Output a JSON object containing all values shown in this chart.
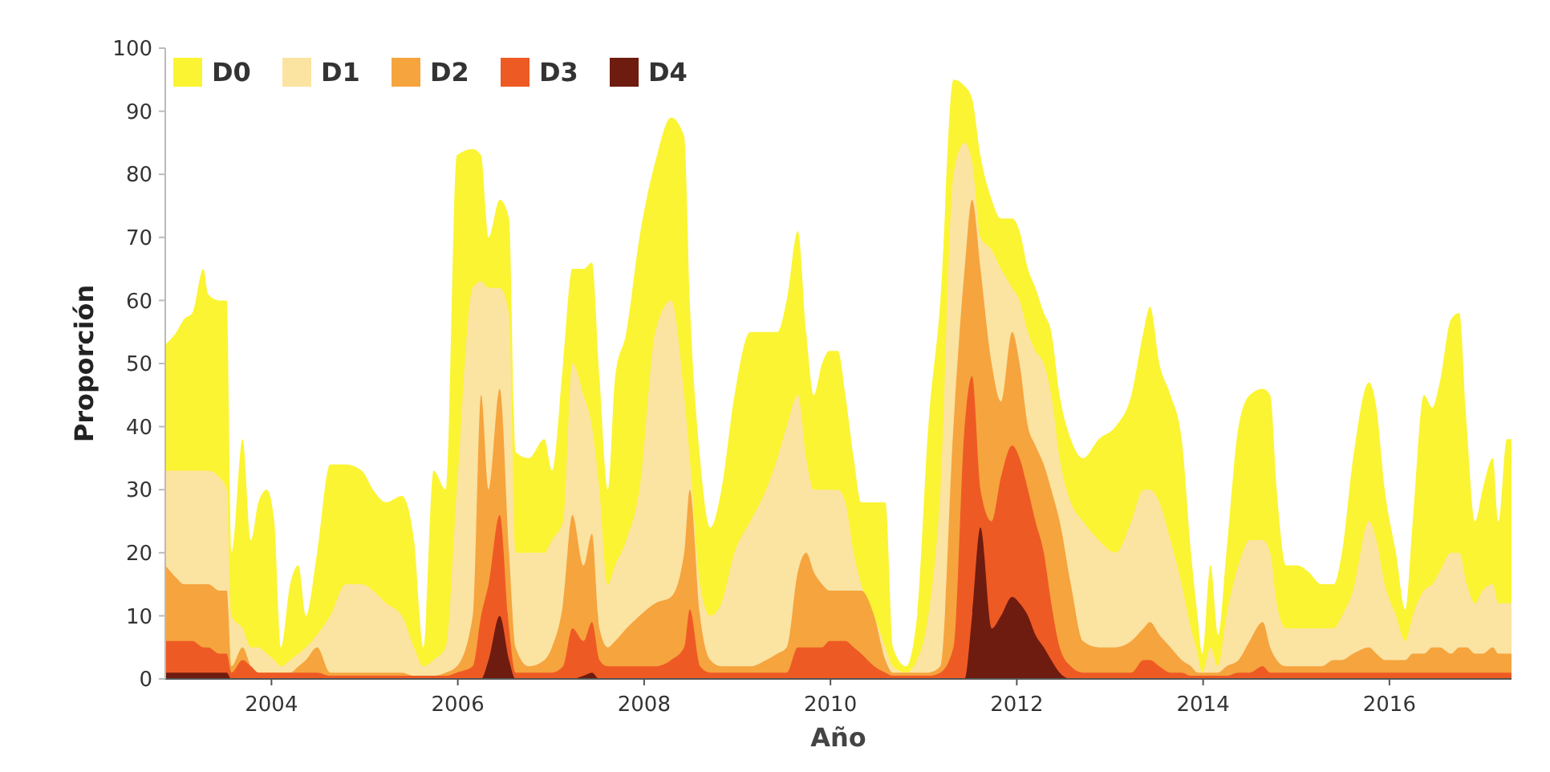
{
  "chart_data": {
    "type": "area",
    "xlabel": "Año",
    "ylabel": "Proporción",
    "legend": "top left",
    "xlim": [
      2002.86,
      2017.31
    ],
    "xticks": [
      2004,
      2006,
      2008,
      2010,
      2012,
      2014,
      2016
    ],
    "ylim": [
      0,
      100
    ],
    "yticks": [
      0,
      10,
      20,
      30,
      40,
      50,
      60,
      70,
      80,
      90,
      100
    ],
    "x": [
      2002.86,
      2002.98,
      2003.06,
      2003.15,
      2003.27,
      2003.32,
      2003.44,
      2003.52,
      2003.57,
      2003.69,
      2003.78,
      2003.86,
      2003.95,
      2004.03,
      2004.1,
      2004.2,
      2004.29,
      2004.37,
      2004.49,
      2004.63,
      2004.8,
      2004.97,
      2005.09,
      2005.23,
      2005.4,
      2005.53,
      2005.63,
      2005.74,
      2005.87,
      2005.99,
      2006.16,
      2006.25,
      2006.33,
      2006.45,
      2006.55,
      2006.62,
      2006.76,
      2006.93,
      2007.01,
      2007.13,
      2007.23,
      2007.35,
      2007.44,
      2007.52,
      2007.61,
      2007.69,
      2007.81,
      2007.95,
      2008.12,
      2008.29,
      2008.43,
      2008.49,
      2008.6,
      2008.71,
      2008.83,
      2008.97,
      2009.14,
      2009.31,
      2009.43,
      2009.53,
      2009.65,
      2009.74,
      2009.82,
      2009.91,
      2009.99,
      2010.08,
      2010.16,
      2010.25,
      2010.33,
      2010.47,
      2010.59,
      2010.67,
      2010.81,
      2010.93,
      2011.05,
      2011.18,
      2011.32,
      2011.44,
      2011.52,
      2011.61,
      2011.73,
      2011.83,
      2011.95,
      2012.03,
      2012.12,
      2012.2,
      2012.29,
      2012.37,
      2012.46,
      2012.58,
      2012.71,
      2012.88,
      2013.06,
      2013.23,
      2013.36,
      2013.43,
      2013.53,
      2013.65,
      2013.77,
      2013.87,
      2013.94,
      2013.99,
      2014.08,
      2014.16,
      2014.25,
      2014.38,
      2014.5,
      2014.64,
      2014.72,
      2014.79,
      2014.89,
      2015.01,
      2015.13,
      2015.27,
      2015.4,
      2015.49,
      2015.61,
      2015.78,
      2015.86,
      2015.95,
      2016.07,
      2016.17,
      2016.25,
      2016.37,
      2016.46,
      2016.54,
      2016.66,
      2016.75,
      2016.83,
      2016.92,
      2017.0,
      2017.11,
      2017.17,
      2017.26,
      2017.31
    ],
    "series": [
      {
        "name": "D0",
        "color": "#fbf432",
        "values": [
          53,
          55,
          57,
          58,
          65,
          61,
          60,
          60,
          20,
          38,
          22,
          28,
          30,
          25,
          5,
          15,
          18,
          10,
          20,
          34,
          34,
          33,
          30,
          28,
          29,
          22,
          5,
          33,
          30,
          83,
          84,
          83,
          70,
          76,
          73,
          36,
          35,
          38,
          33,
          50,
          65,
          65,
          66,
          48,
          30,
          48,
          55,
          70,
          82,
          89,
          86,
          60,
          35,
          24,
          30,
          45,
          55,
          55,
          55,
          60,
          71,
          55,
          45,
          50,
          52,
          52,
          45,
          35,
          28,
          28,
          28,
          5,
          2,
          10,
          40,
          60,
          95,
          94,
          92,
          83,
          76,
          73,
          73,
          71,
          65,
          62,
          58,
          55,
          45,
          38,
          35,
          38,
          40,
          45,
          55,
          59,
          50,
          45,
          38,
          20,
          10,
          4,
          18,
          7,
          20,
          40,
          45,
          46,
          45,
          30,
          18,
          18,
          17,
          15,
          15,
          20,
          35,
          47,
          43,
          30,
          20,
          11,
          25,
          45,
          43,
          47,
          57,
          58,
          40,
          25,
          30,
          35,
          25,
          38,
          38
        ]
      },
      {
        "name": "D1",
        "color": "#fbe3a2",
        "values": [
          33,
          33,
          33,
          33,
          33,
          33,
          32,
          30,
          10,
          8,
          5,
          5,
          4,
          3,
          2,
          3,
          4,
          5,
          7,
          10,
          15,
          15,
          14,
          12,
          10,
          5,
          2,
          3,
          5,
          30,
          62,
          63,
          62,
          62,
          58,
          20,
          20,
          20,
          22,
          25,
          50,
          45,
          40,
          30,
          15,
          18,
          22,
          30,
          55,
          60,
          45,
          35,
          15,
          10,
          12,
          20,
          25,
          30,
          35,
          40,
          45,
          35,
          30,
          30,
          30,
          30,
          28,
          20,
          15,
          10,
          5,
          2,
          1,
          3,
          10,
          30,
          80,
          85,
          82,
          70,
          68,
          65,
          62,
          60,
          55,
          52,
          50,
          45,
          35,
          28,
          25,
          22,
          20,
          25,
          30,
          30,
          28,
          22,
          15,
          8,
          4,
          1,
          5,
          2,
          10,
          18,
          22,
          22,
          20,
          12,
          8,
          8,
          8,
          8,
          8,
          10,
          14,
          25,
          22,
          15,
          10,
          6,
          10,
          14,
          15,
          17,
          20,
          20,
          15,
          12,
          14,
          15,
          12,
          12,
          12
        ]
      },
      {
        "name": "D2",
        "color": "#f6a43e",
        "values": [
          18,
          16,
          15,
          15,
          15,
          15,
          14,
          14,
          2,
          5,
          2,
          1,
          1,
          1,
          1,
          1,
          2,
          3,
          5,
          1,
          1,
          1,
          1,
          1,
          1,
          0.5,
          0.5,
          0.5,
          1,
          2,
          10,
          45,
          30,
          46,
          20,
          5,
          2,
          3,
          5,
          12,
          26,
          18,
          23,
          8,
          5,
          6,
          8,
          10,
          12,
          13,
          20,
          30,
          10,
          3,
          2,
          2,
          2,
          3,
          4,
          5,
          17,
          20,
          17,
          15,
          14,
          14,
          14,
          14,
          14,
          10,
          3,
          1,
          1,
          1,
          1,
          2,
          40,
          65,
          76,
          65,
          50,
          44,
          55,
          50,
          40,
          37,
          34,
          30,
          25,
          15,
          6,
          5,
          5,
          6,
          8,
          9,
          7,
          5,
          3,
          2,
          1,
          1,
          1,
          1,
          2,
          3,
          6,
          9,
          5,
          3,
          2,
          2,
          2,
          2,
          3,
          3,
          4,
          5,
          4,
          3,
          3,
          3,
          4,
          4,
          5,
          5,
          4,
          5,
          5,
          4,
          4,
          5,
          4,
          4,
          4
        ]
      },
      {
        "name": "D3",
        "color": "#ee5a24",
        "values": [
          6,
          6,
          6,
          6,
          5,
          5,
          4,
          4,
          1,
          3,
          2,
          1,
          1,
          1,
          1,
          1,
          1,
          1,
          1,
          0.5,
          0.5,
          0.5,
          0.5,
          0.5,
          0.5,
          0.5,
          0.5,
          0.5,
          0.5,
          1,
          2,
          10,
          15,
          26,
          8,
          1,
          1,
          1,
          1,
          2,
          8,
          6,
          9,
          3,
          2,
          2,
          2,
          2,
          2,
          3,
          5,
          11,
          2,
          1,
          1,
          1,
          1,
          1,
          1,
          1,
          5,
          5,
          5,
          5,
          6,
          6,
          6,
          5,
          4,
          2,
          1,
          0.5,
          0.5,
          0.5,
          0.5,
          1,
          5,
          40,
          48,
          30,
          25,
          32,
          37,
          35,
          30,
          25,
          20,
          12,
          5,
          2,
          1,
          1,
          1,
          1,
          3,
          3,
          2,
          1,
          1,
          0.5,
          0.5,
          0.5,
          0.5,
          0.5,
          0.5,
          1,
          1,
          2,
          1,
          1,
          1,
          1,
          1,
          1,
          1,
          1,
          1,
          1,
          1,
          1,
          1,
          1,
          1,
          1,
          1,
          1,
          1,
          1,
          1,
          1,
          1,
          1,
          1,
          1,
          1
        ]
      },
      {
        "name": "D4",
        "color": "#6e1c10",
        "values": [
          1,
          1,
          1,
          1,
          1,
          1,
          1,
          1,
          0,
          0,
          0,
          0,
          0,
          0,
          0,
          0,
          0,
          0,
          0,
          0,
          0,
          0,
          0,
          0,
          0,
          0,
          0,
          0,
          0,
          0,
          0,
          0,
          3,
          10,
          3,
          0,
          0,
          0,
          0,
          0,
          0,
          0.5,
          1,
          0,
          0,
          0,
          0,
          0,
          0,
          0,
          0,
          0,
          0,
          0,
          0,
          0,
          0,
          0,
          0,
          0,
          0,
          0,
          0,
          0,
          0,
          0,
          0,
          0,
          0,
          0,
          0,
          0,
          0,
          0,
          0,
          0,
          0,
          0,
          10,
          24,
          8,
          10,
          13,
          12,
          10,
          7,
          5,
          3,
          1,
          0,
          0,
          0,
          0,
          0,
          0,
          0,
          0,
          0,
          0,
          0,
          0,
          0,
          0,
          0,
          0,
          0,
          0,
          0,
          0,
          0,
          0,
          0,
          0,
          0,
          0,
          0,
          0,
          0,
          0,
          0,
          0,
          0,
          0,
          0,
          0,
          0,
          0,
          0,
          0,
          0,
          0,
          0,
          0,
          0,
          0
        ]
      }
    ]
  }
}
